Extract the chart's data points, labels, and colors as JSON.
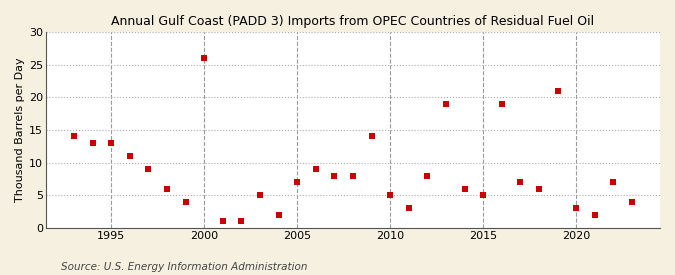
{
  "title": "Annual Gulf Coast (PADD 3) Imports from OPEC Countries of Residual Fuel Oil",
  "ylabel": "Thousand Barrels per Day",
  "source": "Source: U.S. Energy Information Administration",
  "years": [
    1993,
    1994,
    1995,
    1996,
    1997,
    1998,
    1999,
    2000,
    2001,
    2002,
    2003,
    2004,
    2005,
    2006,
    2007,
    2008,
    2009,
    2010,
    2011,
    2012,
    2013,
    2014,
    2015,
    2016,
    2017,
    2018,
    2019,
    2020,
    2021,
    2022,
    2023
  ],
  "values": [
    14,
    13,
    13,
    11,
    9,
    6,
    4,
    26,
    1,
    1,
    5,
    2,
    7,
    9,
    8,
    8,
    14,
    5,
    3,
    8,
    19,
    6,
    5,
    19,
    7,
    6,
    21,
    3,
    2,
    7,
    4
  ],
  "marker_color": "#cc0000",
  "marker_size": 18,
  "background_color": "#f5f0e0",
  "plot_bg_color": "#ffffff",
  "hgrid_color": "#aaaaaa",
  "hgrid_style": ":",
  "vgrid_color": "#999999",
  "vgrid_style": "--",
  "ylim": [
    0,
    30
  ],
  "yticks": [
    0,
    5,
    10,
    15,
    20,
    25,
    30
  ],
  "xlim": [
    1991.5,
    2024.5
  ],
  "xticks": [
    1995,
    2000,
    2005,
    2010,
    2015,
    2020
  ],
  "title_fontsize": 9,
  "tick_fontsize": 8,
  "ylabel_fontsize": 8,
  "source_fontsize": 7.5
}
